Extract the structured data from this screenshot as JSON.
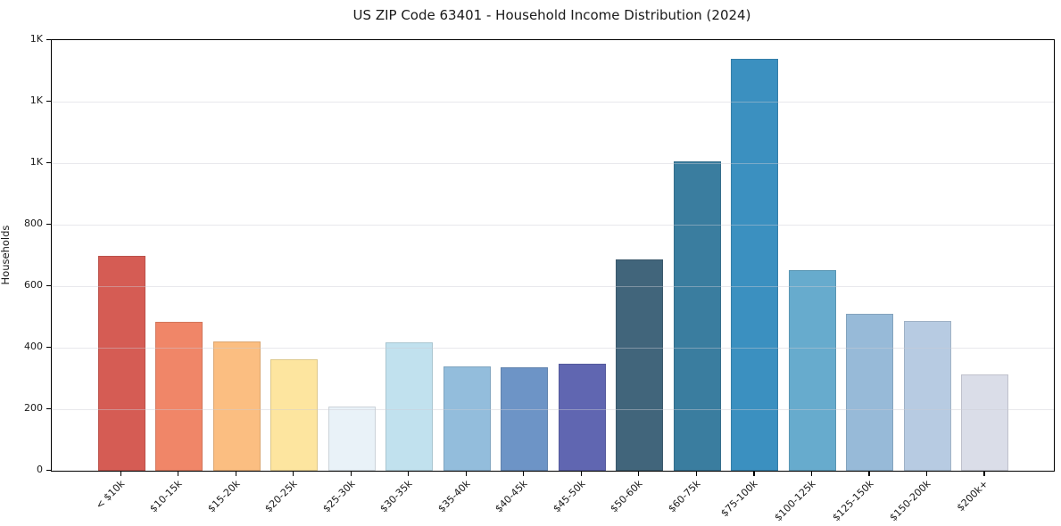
{
  "chart_data": {
    "type": "bar",
    "title": "US ZIP Code 63401 - Household Income Distribution (2024)",
    "xlabel": "",
    "ylabel": "Households",
    "categories": [
      "< $10k",
      "$10-15k",
      "$15-20k",
      "$20-25k",
      "$25-30k",
      "$30-35k",
      "$35-40k",
      "$40-45k",
      "$45-50k",
      "$50-60k",
      "$60-75k",
      "$75-100k",
      "$100-125k",
      "$125-150k",
      "$150-200k",
      "$200k+"
    ],
    "values": [
      698,
      483,
      420,
      361,
      209,
      418,
      340,
      336,
      349,
      688,
      1005,
      1338,
      653,
      510,
      487,
      313
    ],
    "bar_colors": [
      "#d4564e",
      "#f08262",
      "#fbbc7c",
      "#fde49c",
      "#e9f2f8",
      "#bfe0ee",
      "#8fbbdb",
      "#6890c4",
      "#5a60ae",
      "#3a5f76",
      "#33789c",
      "#348cbe",
      "#61a8cb",
      "#93b8d7",
      "#b5c9e1",
      "#d9dce8"
    ],
    "ylim": [
      0,
      1400
    ],
    "ytick_values": [
      0,
      200,
      400,
      600,
      800,
      1000,
      1200,
      1400
    ],
    "ytick_labels": [
      "0",
      "200",
      "400",
      "600",
      "800",
      "1K",
      "1K",
      "1K"
    ],
    "legend": "none",
    "grid": "horizontal"
  }
}
